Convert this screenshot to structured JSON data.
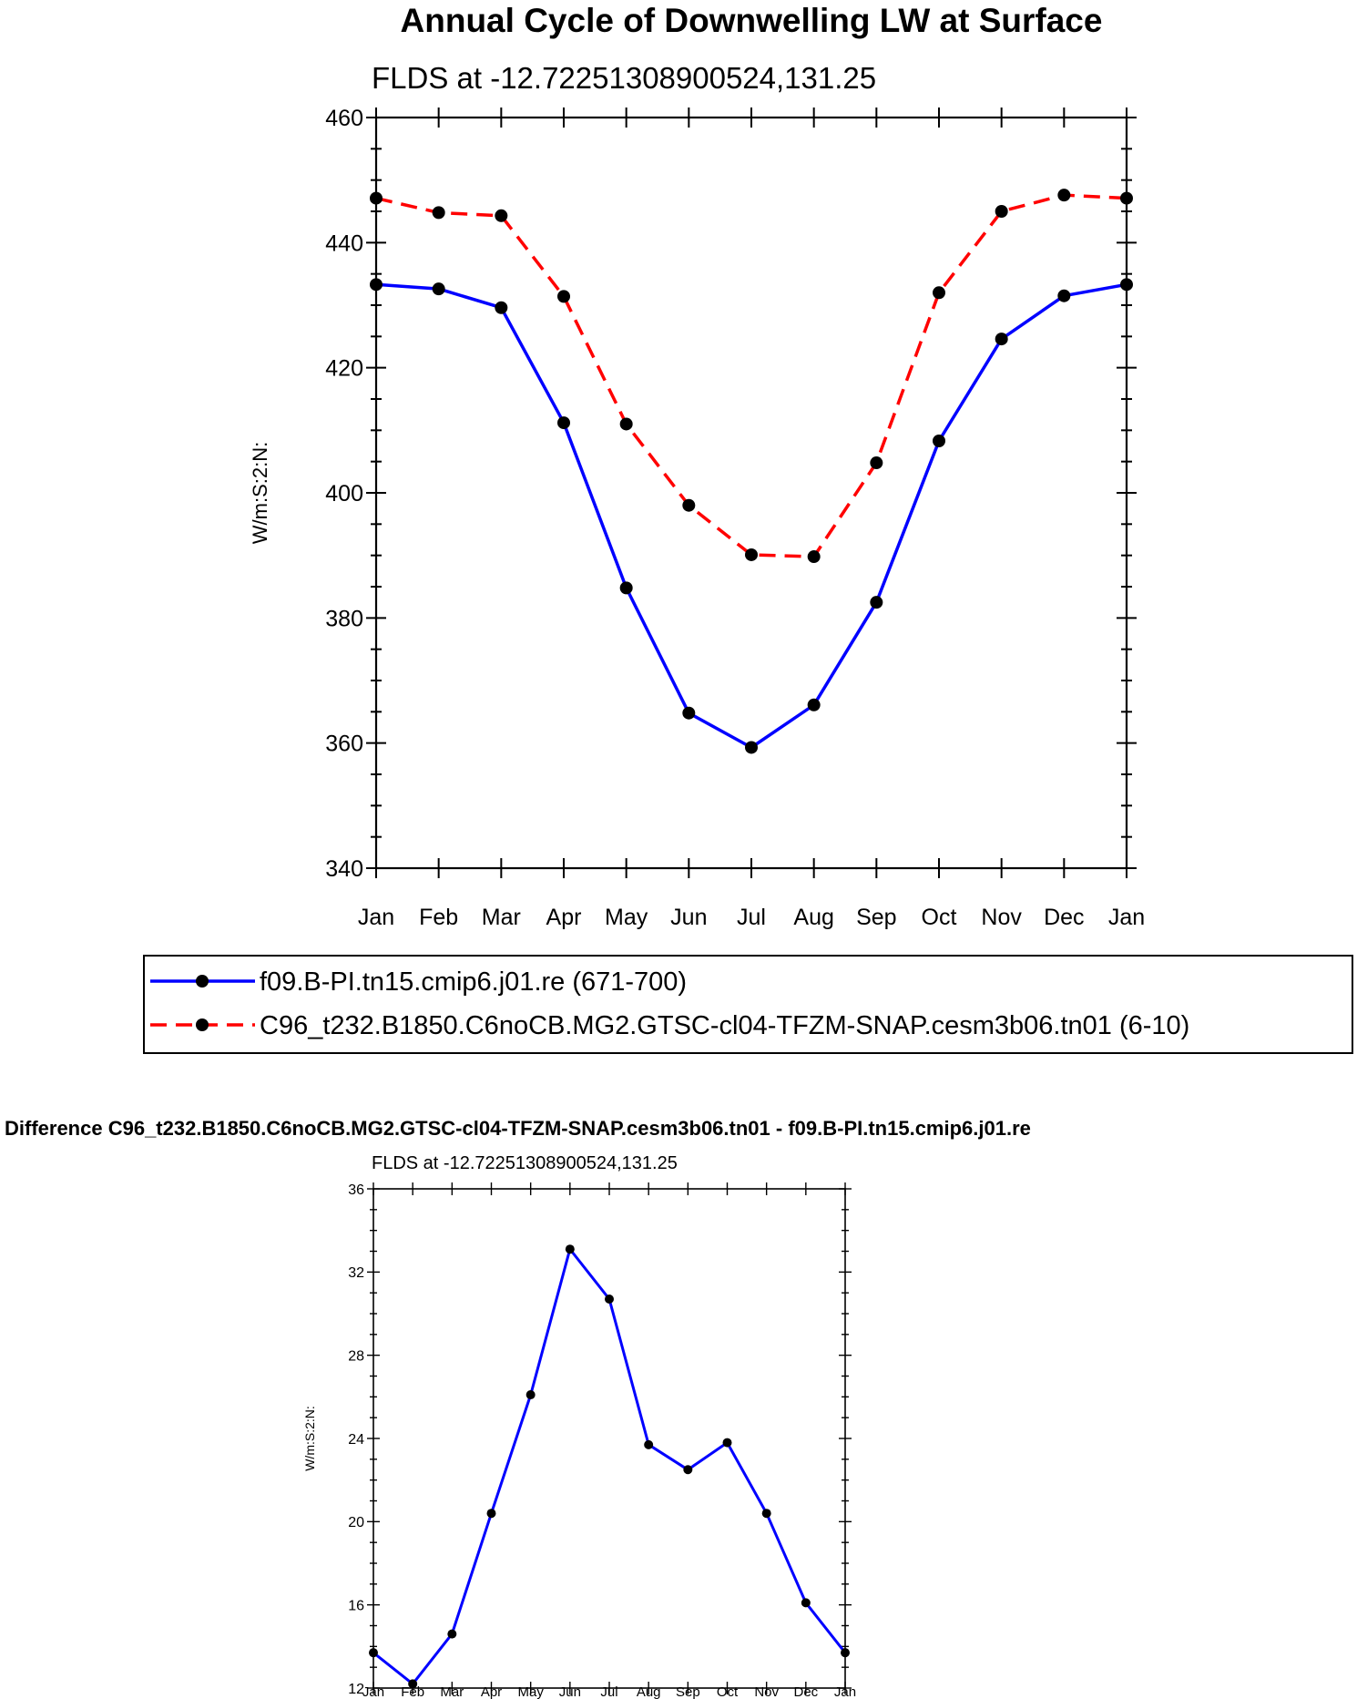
{
  "chart_data": [
    {
      "type": "line",
      "title": "Annual Cycle of Downwelling LW at Surface",
      "subtitle": "FLDS at -12.72251308900524,131.25",
      "xlabel": "",
      "ylabel": "W/m:S:2:N:",
      "categories": [
        "Jan",
        "Feb",
        "Mar",
        "Apr",
        "May",
        "Jun",
        "Jul",
        "Aug",
        "Sep",
        "Oct",
        "Nov",
        "Dec",
        "Jan"
      ],
      "ylim": [
        340,
        460
      ],
      "yticks": [
        340,
        360,
        380,
        400,
        420,
        440,
        460
      ],
      "ytick_labels": [
        "340",
        "360",
        "380",
        "400",
        "420",
        "440",
        "460"
      ],
      "series": [
        {
          "name": "f09.B-PI.tn15.cmip6.j01.re (671-700)",
          "color": "#0000ff",
          "dash": "solid",
          "values": [
            433.3,
            432.6,
            429.6,
            411.2,
            384.8,
            364.8,
            359.3,
            366.1,
            382.5,
            408.3,
            424.6,
            431.5,
            433.3
          ]
        },
        {
          "name": "C96_t232.B1850.C6noCB.MG2.GTSC-cl04-TFZM-SNAP.cesm3b06.tn01 (6-10)",
          "color": "#ff0000",
          "dash": "dashed",
          "values": [
            447.1,
            444.8,
            444.3,
            431.4,
            411.0,
            398.0,
            390.1,
            389.8,
            404.8,
            432.0,
            445.0,
            447.6,
            447.1
          ]
        }
      ],
      "legend": "below plot, boxed"
    },
    {
      "type": "line",
      "title": "Difference C96_t232.B1850.C6noCB.MG2.GTSC-cl04-TFZM-SNAP.cesm3b06.tn01 - f09.B-PI.tn15.cmip6.j01.re",
      "subtitle": "FLDS at -12.72251308900524,131.25",
      "xlabel": "",
      "ylabel": "W/m:S:2:N:",
      "categories": [
        "Jan",
        "Feb",
        "Mar",
        "Apr",
        "May",
        "Jun",
        "Jul",
        "Aug",
        "Sep",
        "Oct",
        "Nov",
        "Dec",
        "Jan"
      ],
      "ylim": [
        12,
        36
      ],
      "yticks": [
        12,
        16,
        20,
        24,
        28,
        32,
        36
      ],
      "ytick_labels": [
        "12",
        "16",
        "20",
        "24",
        "28",
        "32",
        "36"
      ],
      "series": [
        {
          "name": "difference",
          "color": "#0000ff",
          "dash": "solid",
          "values": [
            13.7,
            12.2,
            14.6,
            20.4,
            26.1,
            33.1,
            30.7,
            23.7,
            22.5,
            23.8,
            20.4,
            16.1,
            13.7
          ]
        }
      ]
    }
  ]
}
